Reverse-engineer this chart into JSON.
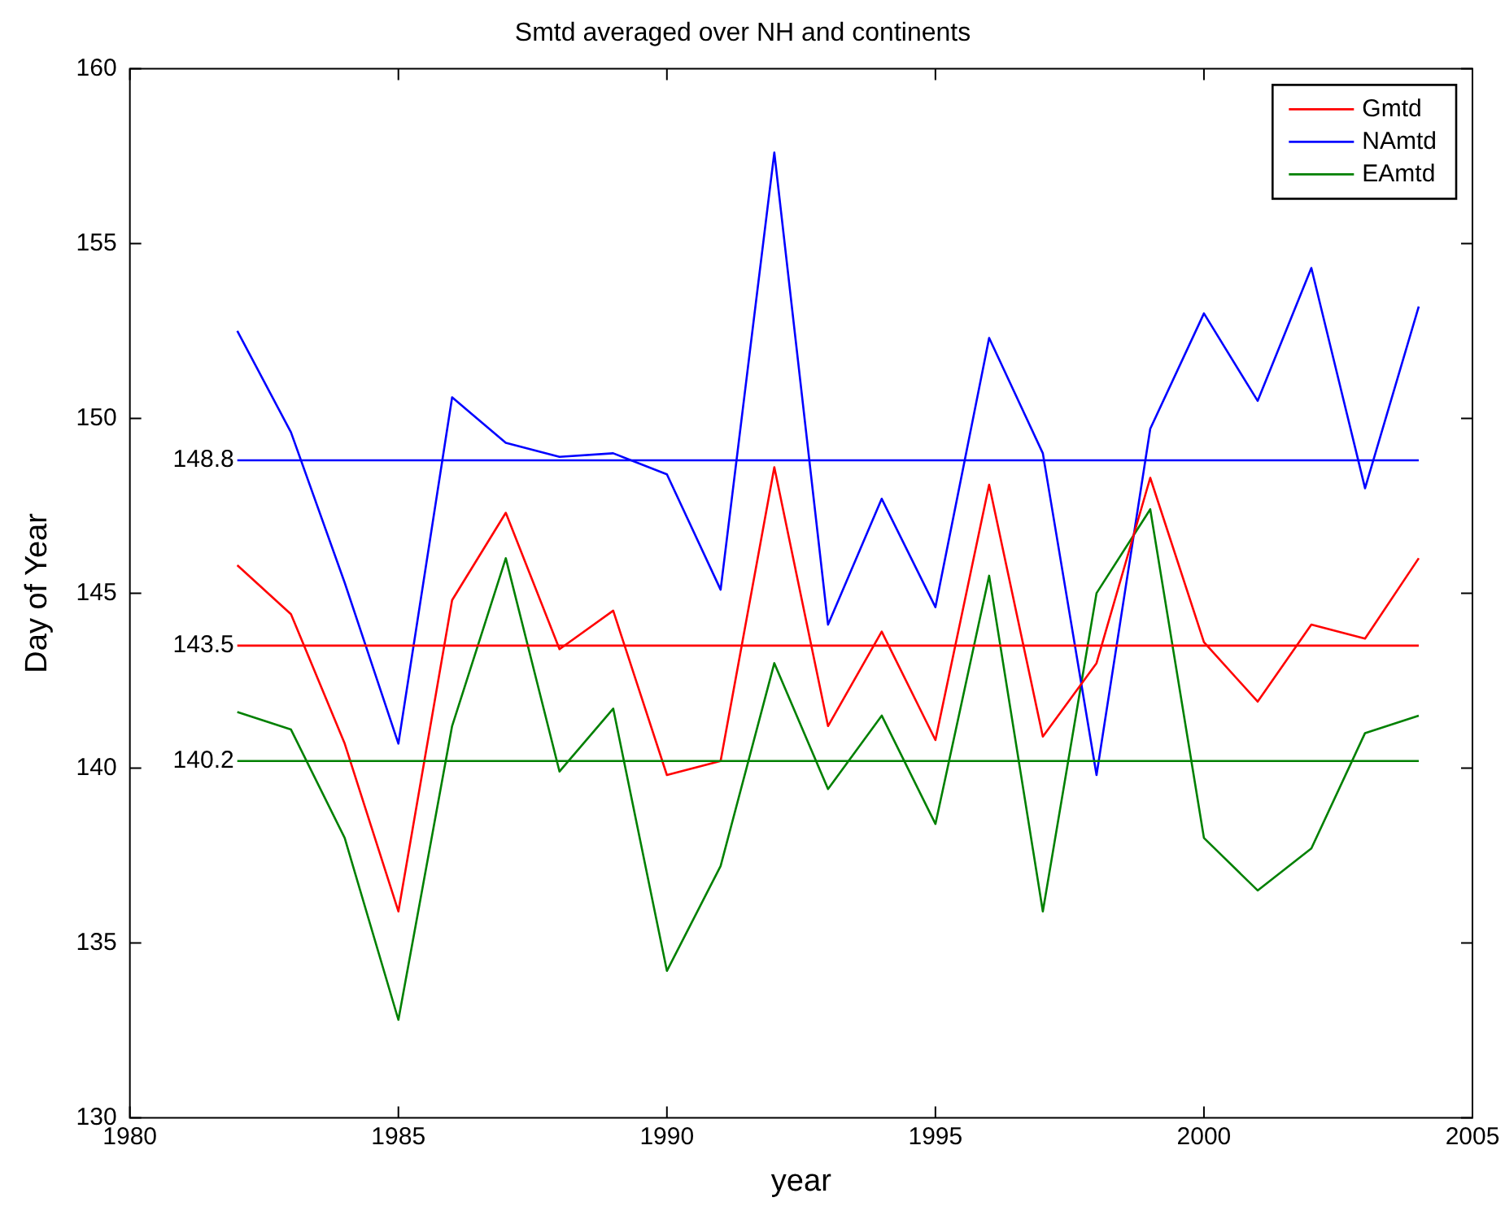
{
  "chart_data": {
    "type": "line",
    "title": "Smtd averaged over NH and continents",
    "xlabel": "year",
    "ylabel": "Day of Year",
    "x": [
      1982,
      1983,
      1984,
      1985,
      1986,
      1987,
      1988,
      1989,
      1990,
      1991,
      1992,
      1993,
      1994,
      1995,
      1996,
      1997,
      1998,
      1999,
      2000,
      2001,
      2002,
      2003,
      2004
    ],
    "series": [
      {
        "name": "Gmtd",
        "color": "#ff0000",
        "values": [
          145.8,
          144.4,
          140.7,
          135.9,
          144.8,
          147.3,
          143.4,
          144.5,
          139.8,
          140.2,
          148.6,
          141.2,
          143.9,
          140.8,
          148.1,
          140.9,
          143.0,
          148.3,
          143.6,
          141.9,
          144.1,
          143.7,
          146.0
        ]
      },
      {
        "name": "NAmtd",
        "color": "#0000ff",
        "values": [
          152.5,
          149.6,
          145.3,
          140.7,
          150.6,
          149.3,
          148.9,
          149.0,
          148.4,
          145.1,
          157.6,
          144.1,
          147.7,
          144.6,
          152.3,
          149.0,
          139.8,
          149.7,
          153.0,
          150.5,
          154.3,
          148.0,
          153.2
        ]
      },
      {
        "name": "EAmtd",
        "color": "#008000",
        "values": [
          141.6,
          141.1,
          138.0,
          132.8,
          141.2,
          146.0,
          139.9,
          141.7,
          134.2,
          137.2,
          143.0,
          139.4,
          141.5,
          138.4,
          145.5,
          135.9,
          145.0,
          147.4,
          138.0,
          136.5,
          137.7,
          141.0,
          141.5
        ]
      }
    ],
    "ref_lines": [
      {
        "axis": "y",
        "value": 148.8,
        "label": "148.8",
        "color": "#0000ff"
      },
      {
        "axis": "y",
        "value": 143.5,
        "label": "143.5",
        "color": "#ff0000"
      },
      {
        "axis": "y",
        "value": 140.2,
        "label": "140.2",
        "color": "#008000"
      }
    ],
    "xlim": [
      1980,
      2005
    ],
    "xticks": [
      1980,
      1985,
      1990,
      1995,
      2000,
      2005
    ],
    "ylim": [
      130,
      160
    ],
    "yticks": [
      130,
      135,
      140,
      145,
      150,
      155,
      160
    ],
    "grid": false,
    "legend": "top right",
    "marker": "none",
    "line_style": "solid"
  }
}
